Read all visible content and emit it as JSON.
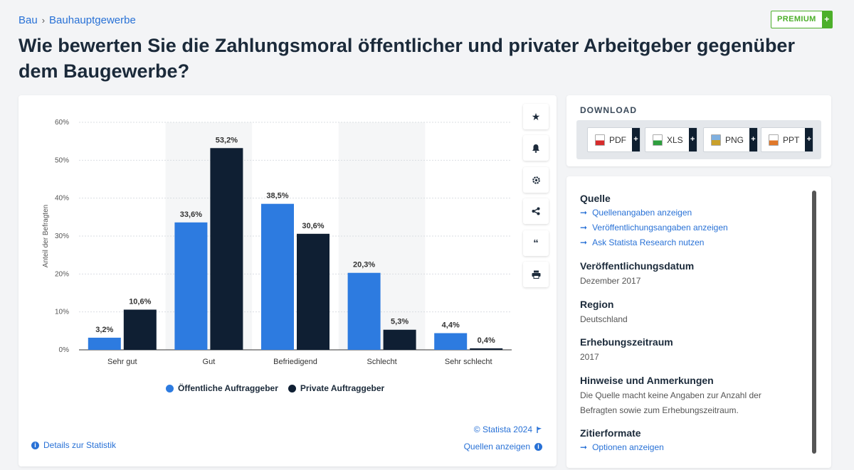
{
  "breadcrumb": {
    "level1": "Bau",
    "separator": "›",
    "level2": "Bauhauptgewerbe"
  },
  "premium": {
    "label": "PREMIUM",
    "plus": "+"
  },
  "title": "Wie bewerten Sie die Zahlungsmoral öffentlicher und privater Arbeitgeber gegenüber dem Baugewerbe?",
  "colors": {
    "public": "#2d7be0",
    "private": "#0f1f33",
    "accent": "#2871d6"
  },
  "tools": [
    "star-icon",
    "bell-icon",
    "gear-icon",
    "share-icon",
    "quote-icon",
    "print-icon"
  ],
  "chart_data": {
    "type": "bar",
    "categories": [
      "Sehr gut",
      "Gut",
      "Befriedigend",
      "Schlecht",
      "Sehr schlecht"
    ],
    "series": [
      {
        "name": "Öffentliche Auftraggeber",
        "values": [
          3.2,
          33.6,
          38.5,
          20.3,
          4.4
        ],
        "labels": [
          "3,2%",
          "33,6%",
          "38,5%",
          "20,3%",
          "4,4%"
        ]
      },
      {
        "name": "Private Auftraggeber",
        "values": [
          10.6,
          53.2,
          30.6,
          5.3,
          0.4
        ],
        "labels": [
          "10,6%",
          "53,2%",
          "30,6%",
          "5,3%",
          "0,4%"
        ]
      }
    ],
    "ylabel": "Anteil der Befragten",
    "ylim": [
      0,
      60
    ],
    "yticks": [
      "0%",
      "10%",
      "20%",
      "30%",
      "40%",
      "50%",
      "60%"
    ],
    "grid": true,
    "legend_position": "bottom"
  },
  "footer": {
    "copyright": "© Statista 2024",
    "details": "Details zur Statistik",
    "sources": "Quellen anzeigen"
  },
  "download": {
    "title": "DOWNLOAD",
    "buttons": [
      {
        "label": "PDF",
        "icon": "pdf-icon"
      },
      {
        "label": "XLS",
        "icon": "xls-icon"
      },
      {
        "label": "PNG",
        "icon": "png-icon"
      },
      {
        "label": "PPT",
        "icon": "ppt-icon"
      }
    ],
    "plus": "+"
  },
  "info": {
    "quelle": {
      "title": "Quelle",
      "links": [
        "Quellenangaben anzeigen",
        "Veröffentlichungsangaben anzeigen",
        "Ask Statista Research nutzen"
      ]
    },
    "datum": {
      "title": "Veröffentlichungsdatum",
      "value": "Dezember 2017"
    },
    "region": {
      "title": "Region",
      "value": "Deutschland"
    },
    "zeitraum": {
      "title": "Erhebungszeitraum",
      "value": "2017"
    },
    "hinweise": {
      "title": "Hinweise und Anmerkungen",
      "value": "Die Quelle macht keine Angaben zur Anzahl der Befragten sowie zum Erhebungszeitraum."
    },
    "zitier": {
      "title": "Zitierformate",
      "link": "Optionen anzeigen"
    }
  }
}
